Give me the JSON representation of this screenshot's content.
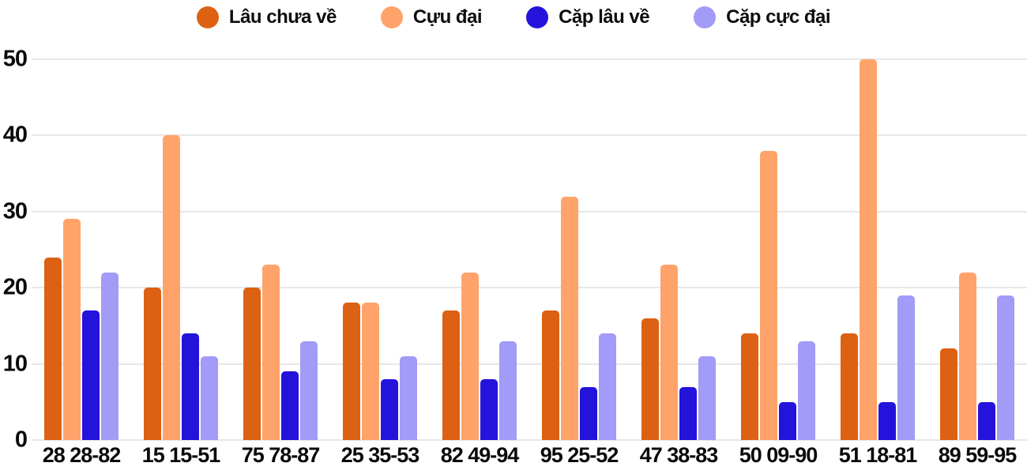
{
  "chart_data": {
    "type": "bar",
    "title": "",
    "xlabel": "",
    "ylabel": "",
    "categories": [
      "28 28-82",
      "15 15-51",
      "75 78-87",
      "25 35-53",
      "82 49-94",
      "95 25-52",
      "47 38-83",
      "50 09-90",
      "51 18-81",
      "89 59-95"
    ],
    "series": [
      {
        "name": "Lâu chưa về",
        "color": "#dd6112",
        "values": [
          24,
          20,
          20,
          18,
          17,
          17,
          16,
          14,
          14,
          12
        ]
      },
      {
        "name": "Cựu đại",
        "color": "#ffa36b",
        "values": [
          29,
          40,
          23,
          18,
          22,
          32,
          23,
          38,
          50,
          22
        ]
      },
      {
        "name": "Cặp lâu về",
        "color": "#2413db",
        "values": [
          17,
          14,
          9,
          8,
          8,
          7,
          7,
          5,
          5,
          5
        ]
      },
      {
        "name": "Cặp cực đại",
        "color": "#a29bf7",
        "values": [
          22,
          11,
          13,
          11,
          13,
          14,
          11,
          13,
          19,
          19
        ]
      }
    ],
    "ylim": [
      0,
      50
    ],
    "yticks": [
      0,
      10,
      20,
      30,
      40,
      50
    ],
    "grid": true,
    "legend_position": "top",
    "colors": {
      "grid": "#e7e7e7",
      "text": "#0a0a0a",
      "background": "#ffffff"
    }
  }
}
